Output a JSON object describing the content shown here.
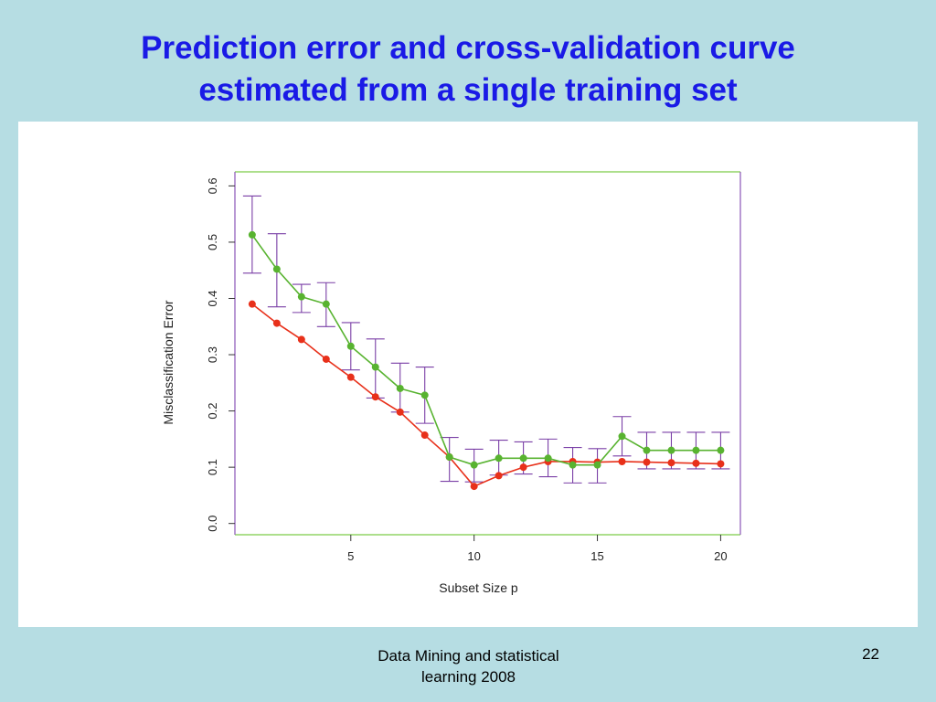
{
  "slide": {
    "title_line1": "Prediction error and cross-validation curve",
    "title_line2": "estimated from a single training set",
    "footer_line1": "Data Mining and statistical",
    "footer_line2": "learning 2008",
    "page_number": "22"
  },
  "colors": {
    "background": "#b6dde3",
    "title": "#1a1ae6",
    "prediction_error": "#e8301a",
    "cv_error": "#58b330",
    "error_bar": "#7a3fa6",
    "frame_green": "#7ccc48",
    "frame_purple": "#8a55b8"
  },
  "chart_data": {
    "type": "line",
    "title": "",
    "xlabel": "Subset Size p",
    "ylabel": "Misclassification Error",
    "xlim": [
      0.3,
      20.8
    ],
    "ylim": [
      -0.02,
      0.625
    ],
    "x_ticks": [
      5,
      10,
      15,
      20
    ],
    "x_tick_labels": [
      "5",
      "10",
      "15",
      "20"
    ],
    "y_ticks": [
      0.0,
      0.1,
      0.2,
      0.3,
      0.4,
      0.5,
      0.6
    ],
    "y_tick_labels": [
      "0.0",
      "0.1",
      "0.2",
      "0.3",
      "0.4",
      "0.5",
      "0.6"
    ],
    "x": [
      1,
      2,
      3,
      4,
      5,
      6,
      7,
      8,
      9,
      10,
      11,
      12,
      13,
      14,
      15,
      16,
      17,
      18,
      19,
      20
    ],
    "series": [
      {
        "name": "Prediction error",
        "color_key": "prediction_error",
        "values": [
          0.39,
          0.356,
          0.327,
          0.292,
          0.26,
          0.225,
          0.198,
          0.157,
          0.118,
          0.066,
          0.085,
          0.1,
          0.11,
          0.11,
          0.109,
          0.11,
          0.109,
          0.108,
          0.107,
          0.106
        ]
      },
      {
        "name": "Cross-validation error",
        "color_key": "cv_error",
        "values": [
          0.513,
          0.452,
          0.403,
          0.39,
          0.315,
          0.278,
          0.24,
          0.228,
          0.118,
          0.104,
          0.116,
          0.116,
          0.116,
          0.104,
          0.104,
          0.155,
          0.13,
          0.13,
          0.13,
          0.13
        ],
        "error_bars": {
          "lower": [
            0.445,
            0.385,
            0.375,
            0.35,
            0.273,
            0.223,
            0.198,
            0.178,
            0.075,
            0.074,
            0.086,
            0.088,
            0.083,
            0.072,
            0.072,
            0.12,
            0.097,
            0.097,
            0.097,
            0.097
          ],
          "upper": [
            0.582,
            0.515,
            0.425,
            0.428,
            0.357,
            0.328,
            0.285,
            0.278,
            0.153,
            0.132,
            0.148,
            0.145,
            0.15,
            0.135,
            0.133,
            0.19,
            0.162,
            0.162,
            0.162,
            0.162
          ]
        }
      }
    ]
  }
}
